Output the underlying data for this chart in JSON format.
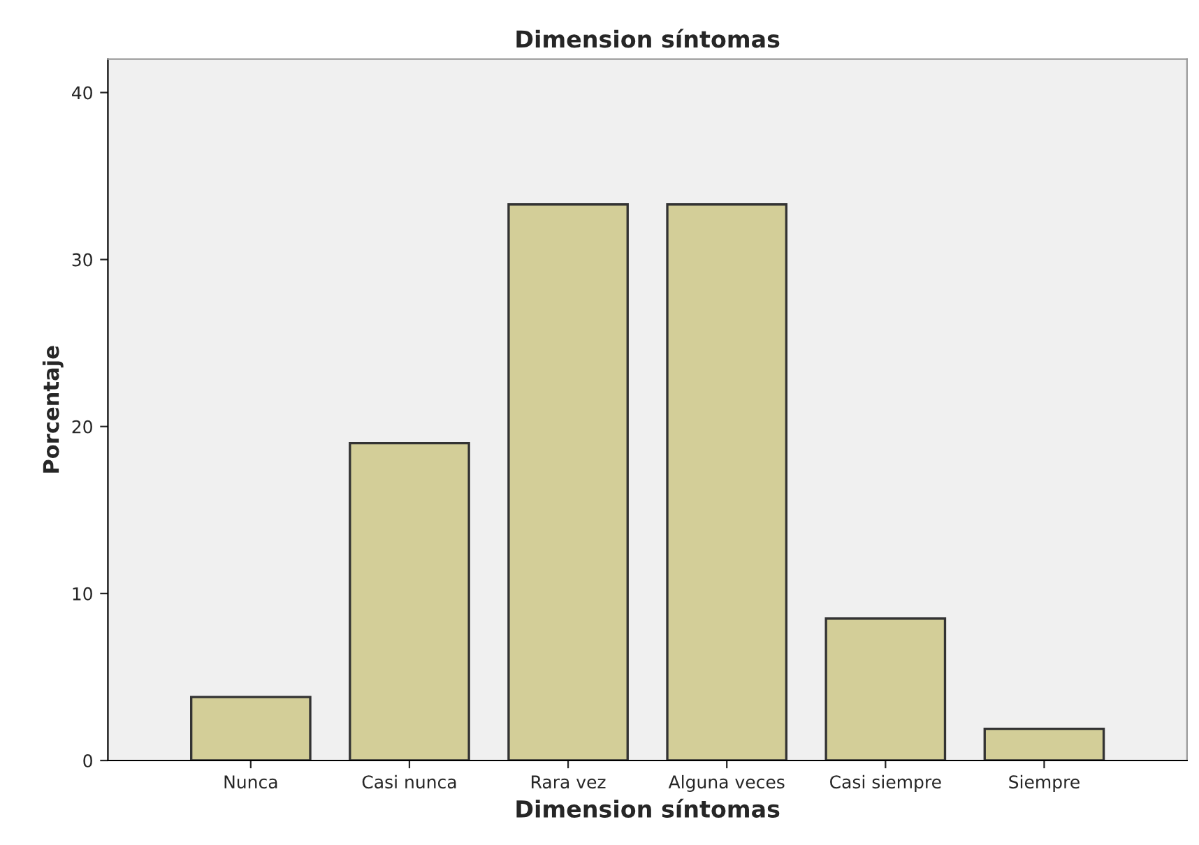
{
  "chart_data": {
    "type": "bar",
    "title": "Dimension síntomas",
    "xlabel": "Dimension síntomas",
    "ylabel": "Porcentaje",
    "categories": [
      "Nunca",
      "Casi nunca",
      "Rara vez",
      "Alguna veces",
      "Casi siempre",
      "Siempre"
    ],
    "values": [
      3.8,
      19.0,
      33.3,
      33.3,
      8.5,
      1.9
    ],
    "color": "#d3ce98",
    "ylim": [
      0,
      42
    ],
    "yticks": [
      0,
      10,
      20,
      30,
      40
    ],
    "grid": false,
    "legend": false
  }
}
